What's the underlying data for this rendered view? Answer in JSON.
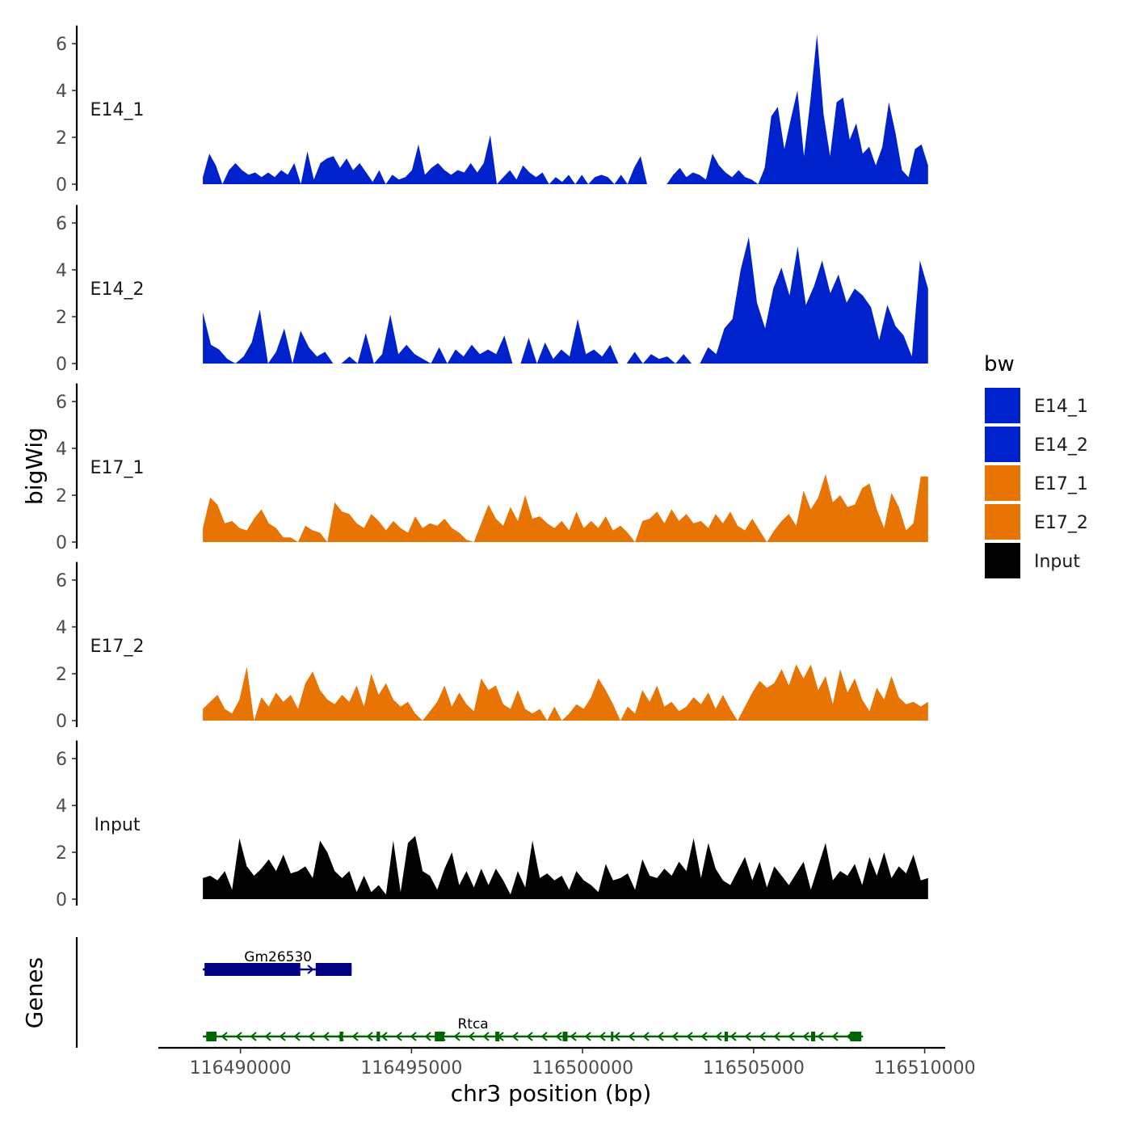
{
  "chart_data": {
    "type": "area",
    "title": "",
    "xlabel": "chr3 position (bp)",
    "ylabel": "bigWig",
    "genes_label": "Genes",
    "xlim": [
      116487600,
      116510600
    ],
    "ylim": [
      0,
      6.6
    ],
    "x_ticks": [
      116490000,
      116495000,
      116500000,
      116505000,
      116510000
    ],
    "x_tick_labels": [
      "116490000",
      "116495000",
      "116500000",
      "116505000",
      "116510000"
    ],
    "y_ticks": [
      0,
      2,
      4,
      6
    ],
    "y_tick_labels": [
      "0",
      "2",
      "4",
      "6"
    ],
    "x_start": 116488900,
    "x_end": 116510100,
    "legend": {
      "title": "bw",
      "position": "right",
      "entries": [
        {
          "label": "E14_1",
          "color": "#0022cc"
        },
        {
          "label": "E14_2",
          "color": "#0022cc"
        },
        {
          "label": "E17_1",
          "color": "#e87404"
        },
        {
          "label": "E17_2",
          "color": "#e87404"
        },
        {
          "label": "Input",
          "color": "#000000"
        }
      ]
    },
    "series": [
      {
        "name": "E14_1",
        "color": "#0022cc",
        "values": [
          0.3,
          1.3,
          0.8,
          0,
          0.6,
          0.9,
          0.6,
          0.4,
          0.5,
          0.3,
          0.5,
          0.3,
          0.6,
          0.4,
          0.9,
          0,
          1.4,
          0.2,
          0.9,
          1.1,
          1.2,
          0.7,
          1.1,
          0.6,
          0.9,
          0.5,
          0.1,
          0.6,
          0,
          0.4,
          0.2,
          0.3,
          0.6,
          1.7,
          0.4,
          0.7,
          0.9,
          0.6,
          0.4,
          0.6,
          0.5,
          0.9,
          0.5,
          0.9,
          2.1,
          0,
          0.3,
          0.6,
          0.2,
          0.8,
          0.5,
          0.3,
          0.5,
          0,
          0.3,
          0.1,
          0.4,
          0,
          0.4,
          0,
          0.3,
          0.4,
          0.3,
          0,
          0.4,
          0,
          0.7,
          1.2,
          0,
          0,
          0,
          0,
          0.4,
          0.7,
          0.3,
          0.5,
          0.4,
          0.2,
          1.3,
          0.8,
          0.5,
          0.3,
          0.6,
          0.3,
          0.2,
          0,
          0.7,
          2.9,
          3.3,
          1.5,
          2.8,
          4.0,
          1.2,
          3.6,
          6.4,
          3.0,
          1.2,
          3.5,
          3.7,
          1.9,
          2.6,
          1.3,
          1.6,
          0.8,
          1.6,
          3.5,
          2.2,
          0.6,
          0.3,
          1.5,
          1.7,
          0.8
        ]
      },
      {
        "name": "E14_2",
        "color": "#0022cc",
        "values": [
          2.2,
          0.8,
          0.6,
          0.2,
          0,
          0.3,
          0.9,
          2.3,
          0,
          0.5,
          1.5,
          0,
          1.4,
          0.7,
          0.3,
          0.5,
          0,
          0,
          0.3,
          0,
          1.3,
          0,
          0.4,
          2.1,
          0.4,
          0.8,
          0.4,
          0.2,
          0,
          0.7,
          0,
          0.6,
          0.3,
          0.8,
          0.4,
          0.6,
          0.4,
          1.2,
          0,
          0,
          1.1,
          0,
          0.9,
          0.2,
          0.6,
          0.3,
          1.9,
          0.4,
          0.6,
          0.3,
          0.8,
          0,
          0,
          0.5,
          0,
          0.4,
          0.2,
          0.3,
          0,
          0.4,
          0,
          0,
          0.7,
          0.4,
          1.5,
          1.9,
          4.0,
          5.4,
          2.6,
          1.5,
          3.2,
          4.1,
          2.9,
          5.0,
          2.5,
          3.3,
          4.4,
          3.0,
          3.8,
          2.6,
          3.2,
          2.9,
          2.4,
          1.0,
          2.5,
          1.6,
          1.2,
          0.3,
          4.4,
          3.2
        ]
      },
      {
        "name": "E17_1",
        "color": "#e87404",
        "values": [
          0.6,
          1.9,
          1.6,
          0.8,
          0.9,
          0.6,
          0.5,
          1.0,
          1.4,
          0.8,
          0.6,
          0.2,
          0.2,
          0,
          0.7,
          0.5,
          0.4,
          0,
          1.7,
          1.3,
          1.2,
          0.8,
          0.6,
          1.2,
          0.9,
          0.5,
          0.9,
          0.6,
          0.4,
          1.1,
          0.6,
          0.8,
          0.7,
          1.0,
          0.6,
          0.4,
          0.1,
          0,
          0.8,
          1.6,
          1.0,
          0.7,
          1.5,
          0.9,
          2.0,
          1.0,
          1.1,
          0.8,
          0.6,
          0.9,
          0.5,
          1.3,
          0.6,
          0.9,
          0.6,
          1.1,
          0.5,
          0.7,
          0.4,
          0,
          0.9,
          1.0,
          1.3,
          0.8,
          1.4,
          0.9,
          1.2,
          0.8,
          0.9,
          0.6,
          1.2,
          0.8,
          1.3,
          0.7,
          0.5,
          1.0,
          0.5,
          0,
          0.5,
          0.9,
          1.2,
          0.7,
          2.2,
          1.4,
          1.9,
          2.9,
          1.7,
          2.0,
          1.5,
          1.6,
          2.3,
          2.5,
          1.4,
          0.6,
          2.1,
          1.5,
          0.5,
          0.8,
          2.8,
          2.8
        ]
      },
      {
        "name": "E17_2",
        "color": "#e87404",
        "values": [
          0.5,
          0.8,
          1.1,
          0.5,
          0.3,
          0.9,
          2.3,
          0,
          1.0,
          0.6,
          1.2,
          0.8,
          1.1,
          0.5,
          1.6,
          2.1,
          1.3,
          0.9,
          0.7,
          1.1,
          0.8,
          1.5,
          0.6,
          2.0,
          1.1,
          1.6,
          0.9,
          0.6,
          0.8,
          0.3,
          0,
          0.4,
          0.8,
          1.5,
          0.6,
          1.2,
          0.7,
          0.4,
          1.8,
          1.3,
          1.5,
          0.7,
          0.5,
          1.3,
          0.5,
          0.3,
          0.5,
          0,
          0.6,
          0,
          0.3,
          0.7,
          0.5,
          1.0,
          1.8,
          1.3,
          0.7,
          0,
          0.6,
          0.3,
          1.3,
          0.8,
          1.5,
          0.6,
          0.8,
          0.4,
          0.6,
          1.0,
          0.7,
          1.2,
          0.5,
          1.1,
          0.5,
          0,
          0.6,
          1.2,
          1.7,
          1.4,
          1.6,
          2.2,
          1.5,
          2.4,
          1.8,
          2.4,
          1.3,
          1.9,
          0.7,
          2.2,
          1.2,
          1.8,
          0.9,
          0.4,
          1.4,
          0.9,
          1.9,
          1.0,
          0.7,
          0.8,
          0.6,
          0.8
        ]
      },
      {
        "name": "Input",
        "color": "#000000",
        "values": [
          0.9,
          1.0,
          0.8,
          1.2,
          0.4,
          2.6,
          1.4,
          1.0,
          1.3,
          1.7,
          1.2,
          1.9,
          1.1,
          1.2,
          1.4,
          0.9,
          2.5,
          2.0,
          1.2,
          0.9,
          1.2,
          0.3,
          1.0,
          0.3,
          0.6,
          0.2,
          2.5,
          0.3,
          2.4,
          2.7,
          1.2,
          1.0,
          0.4,
          1.3,
          2.0,
          0.6,
          1.2,
          0.5,
          1.3,
          0.6,
          1.3,
          0.8,
          0.2,
          1.2,
          0.5,
          2.5,
          0.9,
          1.1,
          0.8,
          1.0,
          0.4,
          1.2,
          0.8,
          0.6,
          0.3,
          1.5,
          0.8,
          0.9,
          1.1,
          0.4,
          1.7,
          1.0,
          0.9,
          1.3,
          1.0,
          1.6,
          1.2,
          2.6,
          0.9,
          2.4,
          1.3,
          0.8,
          0.6,
          1.2,
          1.8,
          0.8,
          1.6,
          0.5,
          1.4,
          1.0,
          0.6,
          1.1,
          1.6,
          0.4,
          1.4,
          2.4,
          0.8,
          1.2,
          1.0,
          1.5,
          0.6,
          1.8,
          1.0,
          2.0,
          0.9,
          1.4,
          1.1,
          1.9,
          0.8,
          0.9
        ]
      }
    ],
    "genes": [
      {
        "name": "Gm26530",
        "strand": "+",
        "color": "#000080",
        "start": 116488900,
        "end": 116493250,
        "exons": [
          [
            116488950,
            116491750
          ],
          [
            116492200,
            116493250
          ]
        ]
      },
      {
        "name": "Rtca",
        "strand": "-",
        "color": "#006400",
        "start": 116488900,
        "end": 116508200,
        "exons": [
          [
            116489000,
            116489300
          ],
          [
            116492900,
            116493000
          ],
          [
            116493980,
            116494080
          ],
          [
            116495680,
            116495960
          ],
          [
            116497450,
            116497570
          ],
          [
            116499420,
            116499560
          ],
          [
            116500830,
            116500900
          ],
          [
            116504150,
            116504250
          ],
          [
            116506680,
            116506800
          ],
          [
            116507820,
            116508150
          ]
        ]
      }
    ]
  }
}
